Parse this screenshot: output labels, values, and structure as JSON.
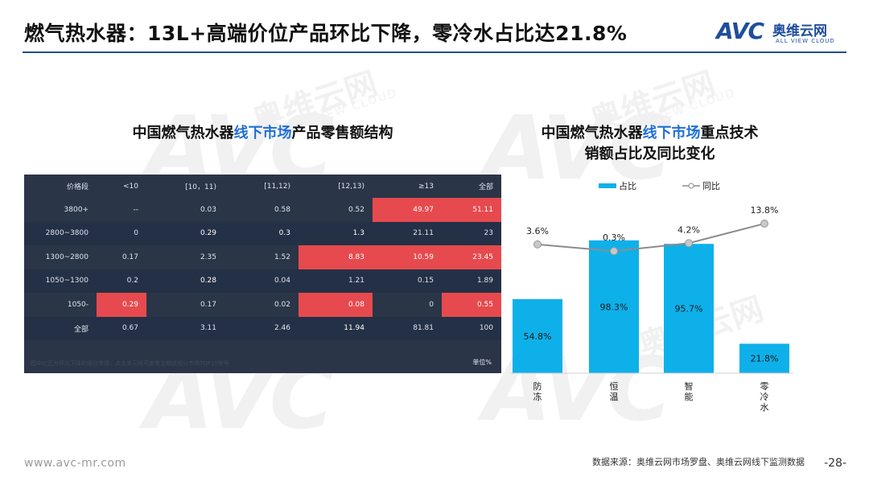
{
  "title": "燃气热水器：13L+高端价位产品环比下降，零冷水占比达21.8%",
  "logo": {
    "mark": "AVC",
    "name": "奥维云网",
    "tagline": "ALL VIEW CLOUD"
  },
  "watermark": {
    "mark": "AVC",
    "name": "奥维云网",
    "tagline": "ALL VIEW CLOUD"
  },
  "left": {
    "subtitle_pre": "中国燃气热水器",
    "subtitle_hl": "线下市场",
    "subtitle_post": "产品零售额结构",
    "table": {
      "headers": [
        "价格段",
        "<10",
        "[10，11)",
        "[11,12)",
        "[12,13)",
        "≥13",
        "全部"
      ],
      "rows": [
        {
          "label": "3800+",
          "cells": [
            "--",
            "0.03",
            "0.58",
            "0.52",
            "49.97",
            "51.11"
          ],
          "red": [
            false,
            false,
            false,
            false,
            true,
            true
          ]
        },
        {
          "label": "2800~3800",
          "cells": [
            "0",
            "0.29",
            "0.3",
            "1.3",
            "21.11",
            "23"
          ],
          "red": [
            false,
            true,
            true,
            true,
            false,
            false
          ]
        },
        {
          "label": "1300~2800",
          "cells": [
            "0.17",
            "2.35",
            "1.52",
            "8.83",
            "10.59",
            "23.45"
          ],
          "red": [
            false,
            false,
            false,
            true,
            true,
            true
          ]
        },
        {
          "label": "1050~1300",
          "cells": [
            "0.2",
            "0.28",
            "0.04",
            "1.21",
            "0.15",
            "1.89"
          ],
          "red": [
            false,
            true,
            false,
            false,
            false,
            false
          ]
        },
        {
          "label": "1050-",
          "cells": [
            "0.29",
            "0.17",
            "0.02",
            "0.08",
            "0",
            "0.55"
          ],
          "red": [
            true,
            false,
            false,
            true,
            false,
            true
          ]
        },
        {
          "label": "全部",
          "cells": [
            "0.67",
            "3.11",
            "2.46",
            "11.94",
            "81.81",
            "100"
          ],
          "red": [
            false,
            false,
            false,
            true,
            false,
            false
          ]
        }
      ],
      "footnote": "图中红区为环比下降的细分市场，点击单元格可查看当期该细分市场TOP10型号",
      "unit": "单位%"
    }
  },
  "right": {
    "subtitle_pre": "中国燃气热水器",
    "subtitle_hl": "线下市场",
    "subtitle_post": "重点技术",
    "subtitle_line2": "销额占比及同比变化"
  },
  "chart_data": {
    "type": "bar",
    "categories": [
      "防冻",
      "恒温",
      "智能",
      "零冷水"
    ],
    "series": [
      {
        "name": "占比",
        "type": "bar",
        "values": [
          54.8,
          98.3,
          95.7,
          21.8
        ],
        "labels": [
          "54.8%",
          "98.3%",
          "95.7%",
          "21.8%"
        ],
        "color": "#0eb0ea"
      },
      {
        "name": "同比",
        "type": "line",
        "values": [
          3.6,
          0.3,
          4.2,
          13.8
        ],
        "labels": [
          "3.6%",
          "0.3%",
          "4.2%",
          "13.8%"
        ],
        "color": "#8c8c8c"
      }
    ],
    "legend": "top",
    "grid": false
  },
  "footer": {
    "url": "www.avc-mr.com",
    "source": "数据来源：奥维云网市场罗盘、奥维云网线下监测数据",
    "page": "-28-"
  }
}
